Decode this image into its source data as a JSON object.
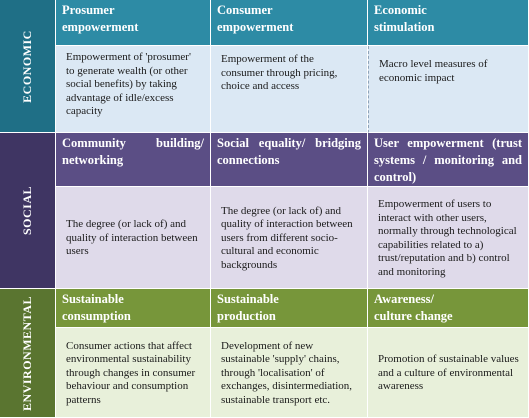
{
  "colors": {
    "economic_side": "#1f6f86",
    "economic_head": "#2d8ba5",
    "economic_body": "#dbe8f4",
    "social_side": "#3f3563",
    "social_head": "#5b4e85",
    "social_body": "#dfdaea",
    "environmental_side": "#5a7530",
    "environmental_head": "#77963a",
    "environmental_body": "#e8f0da"
  },
  "rows": [
    {
      "label": "ECONOMIC",
      "cells": [
        {
          "heading": "Prosumer empowerment",
          "text": "Empowerment of 'prosumer' to generate wealth (or other social benefits) by taking advantage of idle/excess capacity"
        },
        {
          "heading": "Consumer empowerment",
          "text": "Empowerment of the consumer through pricing, choice and access"
        },
        {
          "heading": "Economic stimulation",
          "text": "Macro level measures of economic impact"
        }
      ]
    },
    {
      "label": "SOCIAL",
      "cells": [
        {
          "heading": "Community building/ networking",
          "text": "The degree (or lack of) and quality of interaction between users"
        },
        {
          "heading": "Social equality/ bridging connections",
          "text": "The degree (or lack of) and quality of interaction between users from different socio-cultural and economic backgrounds"
        },
        {
          "heading": "User empowerment (trust systems / monitoring and control)",
          "text": "Empowerment of users to interact with other users, normally through technological capabilities related to a) trust/reputation and b) control and monitoring"
        }
      ]
    },
    {
      "label": "ENVIRONMENTAL",
      "cells": [
        {
          "heading": "Sustainable consumption",
          "text": "Consumer actions that affect environmental sustainability through changes in consumer behaviour and consumption patterns"
        },
        {
          "heading": "Sustainable production",
          "text": "Development of new sustainable 'supply' chains, through 'localisation' of exchanges, disintermediation, sustainable transport etc."
        },
        {
          "heading": "Awareness/ culture change",
          "text": "Promotion of sustainable values and a culture of environmental awareness"
        }
      ]
    }
  ]
}
